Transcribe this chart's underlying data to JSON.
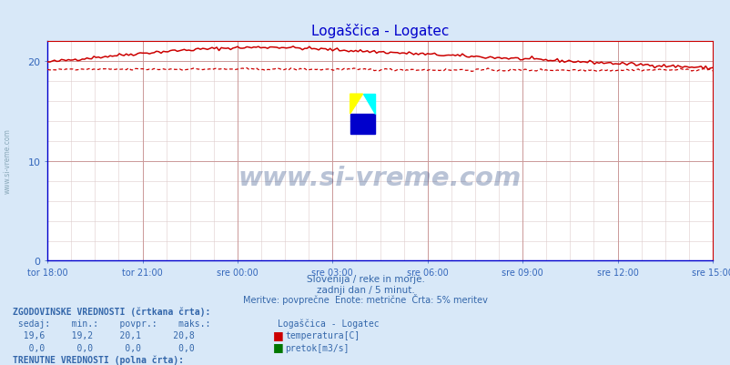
{
  "title": "Logaščica - Logatec",
  "title_color": "#0000cc",
  "bg_color": "#d8e8f8",
  "plot_bg_color": "#ffffff",
  "grid_color_major": "#cc9999",
  "grid_color_minor": "#ddcccc",
  "axis_color": "#0000cc",
  "xlabel_color": "#3366bb",
  "ylabel_color": "#3366bb",
  "x_tick_labels": [
    "tor 18:00",
    "tor 21:00",
    "sre 00:00",
    "sre 03:00",
    "sre 06:00",
    "sre 09:00",
    "sre 12:00",
    "sre 15:00"
  ],
  "x_tick_positions": [
    0,
    36,
    72,
    108,
    144,
    180,
    216,
    252
  ],
  "y_ticks": [
    0,
    10,
    20
  ],
  "ylim": [
    0,
    22
  ],
  "xlim": [
    0,
    252
  ],
  "n_points": 288,
  "line_color_temp": "#cc0000",
  "line_color_flow": "#007700",
  "watermark_text": "www.si-vreme.com",
  "watermark_color": "#1a3a7a",
  "watermark_alpha": 0.3,
  "subtitle1": "Slovenija / reke in morje.",
  "subtitle2": "zadnji dan / 5 minut.",
  "subtitle3": "Meritve: povprečne  Enote: metrične  Črta: 5% meritev",
  "subtitle_color": "#3366aa",
  "left_label": "www.si-vreme.com",
  "left_label_color": "#7799aa"
}
